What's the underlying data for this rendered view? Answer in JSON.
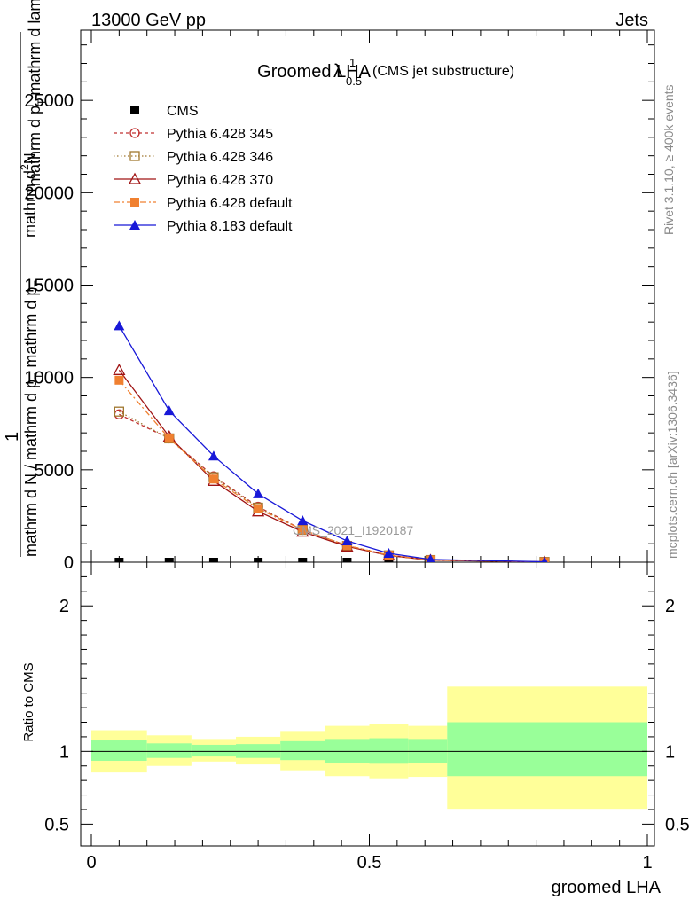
{
  "header": {
    "left": "13000 GeV pp",
    "right": "Jets"
  },
  "title": {
    "main": "Groomed LHA",
    "lambda": "λ",
    "sup": "1",
    "sub": "0.5",
    "suffix": "(CMS jet substructure)"
  },
  "side_labels": {
    "rivet": "Rivet 3.1.10, ≥ 400k events",
    "mcplots": "mcplots.cern.ch [arXiv:1306.3436]"
  },
  "ylabel_main": {
    "one": "1",
    "a": "mathrm d N / mathrm d p",
    "a_sub": "T",
    "a2": "mathrm d p",
    "a2_sub": "T",
    "b": "mathrm d",
    "b_sup": "2",
    "b2": "N",
    "c": "mathrm d p",
    "c_sub": "T",
    "c2": "mathrm d lambda"
  },
  "watermark": "CMS_2021_I1920187",
  "ylabel_ratio": "Ratio to CMS",
  "xlabel": "groomed LHA",
  "chart_data": {
    "type": "line",
    "xlim": [
      0,
      1
    ],
    "main_ylim": [
      0,
      28800
    ],
    "ratio_ylim": [
      0.35,
      2.3
    ],
    "x_ticks": [
      "0",
      "0.5",
      "1"
    ],
    "main_y_ticks": [
      "0",
      "5000",
      "10000",
      "15000",
      "20000",
      "25000"
    ],
    "main_y_tick_values": [
      0,
      5000,
      10000,
      15000,
      20000,
      25000
    ],
    "ratio_y_ticks": [
      "0.5",
      "1",
      "2"
    ],
    "ratio_y_tick_values": [
      0.5,
      1,
      2
    ],
    "x": [
      0.05,
      0.14,
      0.22,
      0.3,
      0.38,
      0.46,
      0.535,
      0.61,
      0.815
    ],
    "series": [
      {
        "name": "CMS",
        "values": [
          0,
          0,
          0,
          0,
          0,
          0,
          0,
          0,
          0
        ],
        "color": "#000000",
        "marker": "square-filled",
        "line": "none"
      },
      {
        "name": "Pythia 6.428 345",
        "values": [
          8000,
          6700,
          4650,
          3000,
          1750,
          900,
          380,
          120,
          15
        ],
        "color": "#c03030",
        "marker": "circle-open",
        "line": "dashed"
      },
      {
        "name": "Pythia 6.428 346",
        "values": [
          8150,
          6700,
          4600,
          2950,
          1750,
          880,
          370,
          115,
          15
        ],
        "color": "#a07830",
        "marker": "square-open",
        "line": "dotted"
      },
      {
        "name": "Pythia 6.428 370",
        "values": [
          10400,
          6800,
          4400,
          2750,
          1650,
          850,
          360,
          110,
          15
        ],
        "color": "#a01414",
        "marker": "triangle-open",
        "line": "solid"
      },
      {
        "name": "Pythia 6.428 default",
        "values": [
          9850,
          6700,
          4500,
          2900,
          1750,
          900,
          380,
          120,
          15
        ],
        "color": "#f08030",
        "marker": "square-filled",
        "line": "dashdot"
      },
      {
        "name": "Pythia 8.183 default",
        "values": [
          12800,
          8200,
          5750,
          3700,
          2250,
          1150,
          480,
          150,
          20
        ],
        "color": "#1818d8",
        "marker": "triangle-filled",
        "line": "solid"
      }
    ],
    "ratio_bands": [
      {
        "x_lo": 0.0,
        "x_hi": 0.1,
        "stat_lo": 0.935,
        "stat_hi": 1.075,
        "tot_lo": 0.855,
        "tot_hi": 1.145
      },
      {
        "x_lo": 0.1,
        "x_hi": 0.18,
        "stat_lo": 0.955,
        "stat_hi": 1.055,
        "tot_lo": 0.9,
        "tot_hi": 1.11
      },
      {
        "x_lo": 0.18,
        "x_hi": 0.26,
        "stat_lo": 0.965,
        "stat_hi": 1.045,
        "tot_lo": 0.93,
        "tot_hi": 1.085
      },
      {
        "x_lo": 0.26,
        "x_hi": 0.34,
        "stat_lo": 0.955,
        "stat_hi": 1.05,
        "tot_lo": 0.91,
        "tot_hi": 1.1
      },
      {
        "x_lo": 0.34,
        "x_hi": 0.42,
        "stat_lo": 0.94,
        "stat_hi": 1.07,
        "tot_lo": 0.87,
        "tot_hi": 1.14
      },
      {
        "x_lo": 0.42,
        "x_hi": 0.5,
        "stat_lo": 0.92,
        "stat_hi": 1.085,
        "tot_lo": 0.83,
        "tot_hi": 1.175
      },
      {
        "x_lo": 0.5,
        "x_hi": 0.57,
        "stat_lo": 0.915,
        "stat_hi": 1.09,
        "tot_lo": 0.815,
        "tot_hi": 1.185
      },
      {
        "x_lo": 0.57,
        "x_hi": 0.64,
        "stat_lo": 0.92,
        "stat_hi": 1.085,
        "tot_lo": 0.825,
        "tot_hi": 1.175
      },
      {
        "x_lo": 0.64,
        "x_hi": 1.0,
        "stat_lo": 0.83,
        "stat_hi": 1.2,
        "tot_lo": 0.605,
        "tot_hi": 1.445
      }
    ],
    "ratio_reference": 1
  }
}
